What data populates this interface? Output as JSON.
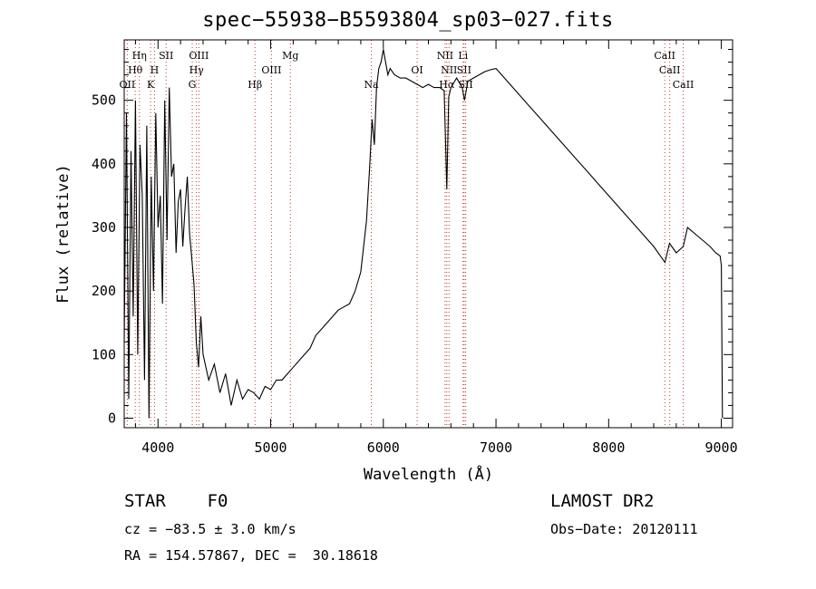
{
  "chart_data": {
    "type": "line",
    "title": "spec−55938−B5593804_sp03−027.fits",
    "xlabel": "Wavelength (Å)",
    "ylabel": "Flux (relative)",
    "xlim": [
      3700,
      9100
    ],
    "ylim": [
      -15,
      595
    ],
    "xticks": [
      4000,
      5000,
      6000,
      7000,
      8000,
      9000
    ],
    "yticks": [
      0,
      100,
      200,
      300,
      400,
      500
    ],
    "grid": false,
    "legend": "none",
    "series": [
      {
        "x": [
          3700,
          3720,
          3740,
          3760,
          3780,
          3800,
          3820,
          3840,
          3860,
          3880,
          3900,
          3920,
          3940,
          3960,
          3980,
          4000,
          4020,
          4040,
          4060,
          4080,
          4100,
          4120,
          4140,
          4160,
          4180,
          4200,
          4220,
          4240,
          4260,
          4280,
          4300,
          4320,
          4340,
          4360,
          4380,
          4400,
          4450,
          4500,
          4550,
          4600,
          4650,
          4700,
          4750,
          4800,
          4850,
          4900,
          4950,
          5000,
          5050,
          5100,
          5150,
          5200,
          5250,
          5300,
          5350,
          5400,
          5450,
          5500,
          5550,
          5600,
          5650,
          5700,
          5750,
          5800,
          5850,
          5880,
          5900,
          5920,
          5940,
          5960,
          5980,
          6000,
          6020,
          6040,
          6060,
          6080,
          6100,
          6150,
          6200,
          6250,
          6300,
          6350,
          6400,
          6450,
          6500,
          6540,
          6563,
          6580,
          6600,
          6650,
          6700,
          6720,
          6750,
          6800,
          6850,
          6900,
          6950,
          7000,
          7100,
          7200,
          7300,
          7400,
          7500,
          7600,
          7700,
          7800,
          7900,
          8000,
          8100,
          8200,
          8300,
          8400,
          8500,
          8540,
          8600,
          8662,
          8700,
          8800,
          8900,
          8950,
          8990,
          9000,
          9010
        ],
        "values": [
          120,
          480,
          30,
          420,
          160,
          500,
          100,
          430,
          350,
          60,
          460,
          0,
          380,
          200,
          480,
          300,
          350,
          180,
          500,
          280,
          520,
          380,
          400,
          260,
          340,
          360,
          270,
          330,
          380,
          290,
          250,
          210,
          120,
          80,
          160,
          100,
          60,
          85,
          40,
          70,
          20,
          60,
          30,
          45,
          40,
          30,
          50,
          45,
          60,
          60,
          70,
          80,
          90,
          100,
          110,
          130,
          140,
          150,
          160,
          170,
          175,
          180,
          200,
          230,
          310,
          400,
          470,
          430,
          520,
          550,
          560,
          580,
          560,
          540,
          550,
          545,
          540,
          535,
          535,
          530,
          525,
          520,
          525,
          520,
          520,
          515,
          360,
          505,
          520,
          535,
          520,
          500,
          530,
          535,
          540,
          545,
          548,
          550,
          530,
          510,
          490,
          470,
          450,
          430,
          410,
          390,
          370,
          350,
          330,
          310,
          290,
          270,
          245,
          275,
          260,
          270,
          300,
          285,
          270,
          260,
          255,
          240,
          0
        ]
      }
    ],
    "lines_labels": [
      "OII",
      "Hθ",
      "Hη",
      "K",
      "H",
      "SII",
      "G",
      "Hγ",
      "OIII",
      "Hβ",
      "OIII",
      "Mg",
      "Na",
      "OI",
      "NII",
      "Hα",
      "NII",
      "Li",
      "SII",
      "SII",
      "CaII",
      "CaII",
      "CaII"
    ]
  },
  "info": {
    "class": "STAR    F0",
    "cz": "cz = −83.5 ± 3.0 km/s",
    "radec": "RA = 154.57867, DEC =  30.18618",
    "survey": "LAMOST DR2",
    "obsdate": "Obs−Date: 20120111"
  }
}
